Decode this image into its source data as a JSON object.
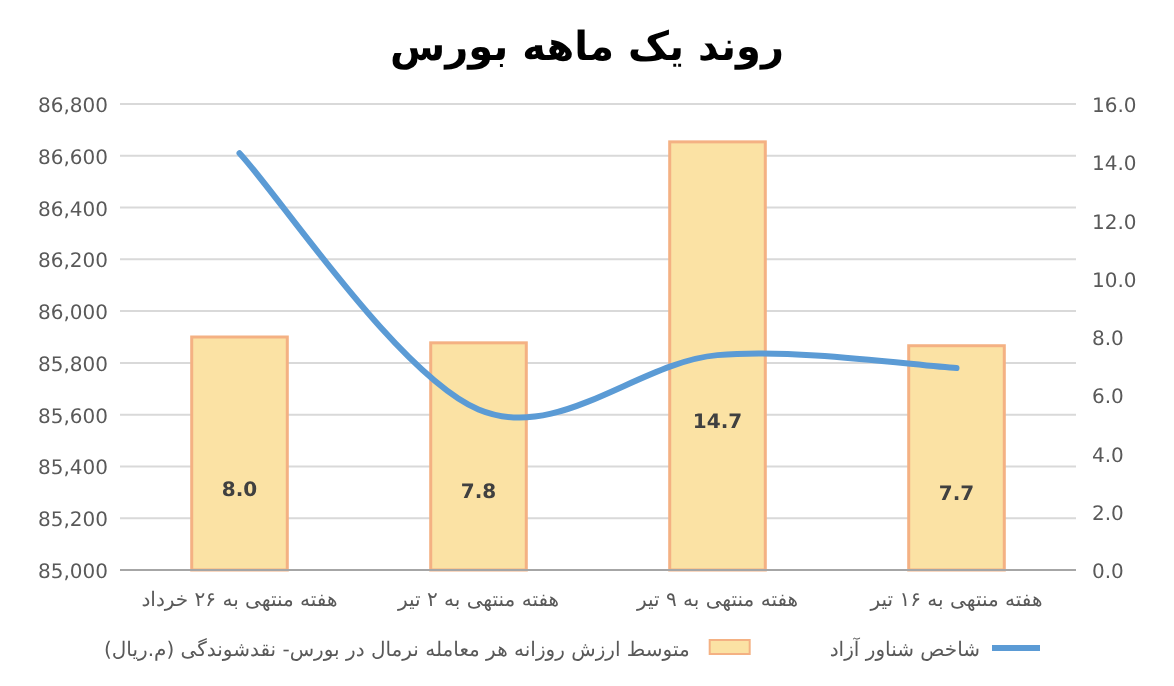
{
  "chart_data": {
    "type": "bar",
    "title": "روند یک ماهه بورس",
    "categories": [
      "هفته منتهی به ۲۶ خرداد",
      "هفته منتهی به ۲ تیر",
      "هفته منتهی به ۹ تیر",
      "هفته منتهی به ۱۶ تیر"
    ],
    "series": [
      {
        "name": "متوسط ارزش روزانه هر معامله نرمال در بورس- نقدشوندگی (م.ریال)",
        "axis": "y2",
        "color": "#fbe2a4",
        "values": [
          8.0,
          7.8,
          14.7,
          7.7
        ],
        "value_labels": [
          "8.0",
          "7.8",
          "14.7",
          "7.7"
        ]
      },
      {
        "name": "شاخص شناور آزاد",
        "type": "line",
        "color": "#5b9bd5",
        "values": [
          86610,
          85620,
          85830,
          85780
        ]
      }
    ],
    "ylim": [
      85000,
      86800
    ],
    "yticks": [
      {
        "value": 85000,
        "label": "85,000"
      },
      {
        "value": 85200,
        "label": "85,200"
      },
      {
        "value": 85400,
        "label": "85,400"
      },
      {
        "value": 85600,
        "label": "85,600"
      },
      {
        "value": 85800,
        "label": "85,800"
      },
      {
        "value": 86000,
        "label": "86,000"
      },
      {
        "value": 86200,
        "label": "86,200"
      },
      {
        "value": 86400,
        "label": "86,400"
      },
      {
        "value": 86600,
        "label": "86,600"
      },
      {
        "value": 86800,
        "label": "86,800"
      }
    ],
    "y2lim": [
      0,
      16
    ],
    "y2ticks": [
      {
        "value": 0,
        "label": "0.0"
      },
      {
        "value": 2,
        "label": "2.0"
      },
      {
        "value": 4,
        "label": "4.0"
      },
      {
        "value": 6,
        "label": "6.0"
      },
      {
        "value": 8,
        "label": "8.0"
      },
      {
        "value": 10,
        "label": "10.0"
      },
      {
        "value": 12,
        "label": "12.0"
      },
      {
        "value": 14,
        "label": "14.0"
      },
      {
        "value": 16,
        "label": "16.0"
      }
    ],
    "grid": "y",
    "legend": "bottom",
    "line_style": "solid",
    "marker": "none"
  }
}
